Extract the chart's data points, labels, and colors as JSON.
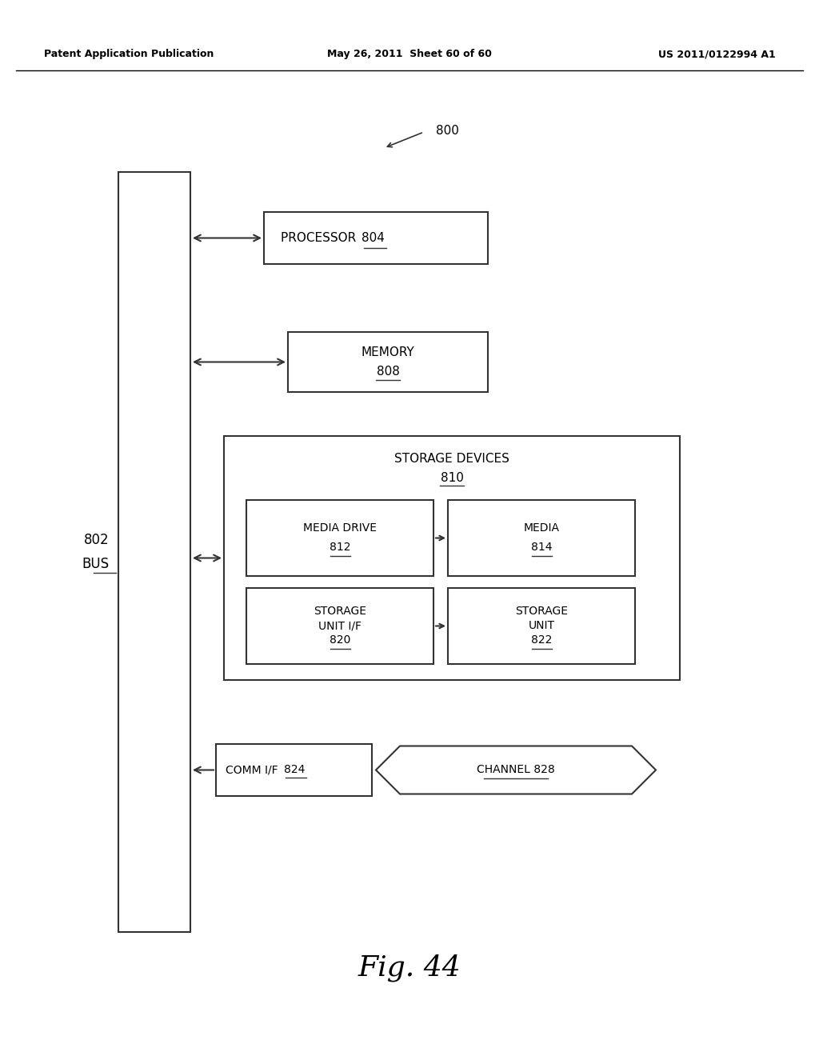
{
  "bg_color": "#ffffff",
  "header_left": "Patent Application Publication",
  "header_mid": "May 26, 2011  Sheet 60 of 60",
  "header_right": "US 2011/0122994 A1",
  "fig_label": "Fig. 44"
}
